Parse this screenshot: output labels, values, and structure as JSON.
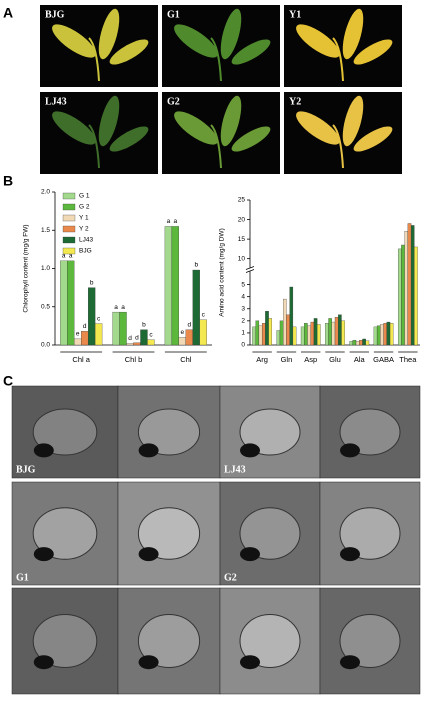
{
  "panel_labels": [
    "A",
    "B",
    "C"
  ],
  "photos_a": [
    "BJG",
    "G1",
    "Y1",
    "LJ43",
    "G2",
    "Y2"
  ],
  "photos_c": [
    "BJG",
    "LJ43",
    "G1",
    "G2"
  ],
  "chart_data": [
    {
      "type": "bar",
      "ylabel": "Chlorophyll content  (mg/g FW)",
      "categories": [
        "Chl a",
        "Chl b",
        "Chl"
      ],
      "ylim": [
        0,
        2.0
      ],
      "yticks": [
        {
          "value": 0,
          "label": "0.0"
        },
        0.5,
        {
          "value": 1,
          "label": "1.0"
        },
        1.5,
        {
          "value": 2,
          "label": "2.0"
        }
      ],
      "legend": "upper left",
      "series": [
        {
          "name": "G 1",
          "color": "#a3d98c",
          "values": [
            1.1,
            0.43,
            1.55
          ],
          "letters": [
            "a",
            "a",
            "a"
          ]
        },
        {
          "name": "G 2",
          "color": "#5cb83d",
          "values": [
            1.1,
            0.43,
            1.55
          ],
          "letters": [
            "a",
            "a",
            "a"
          ]
        },
        {
          "name": "Y 1",
          "color": "#f1d9b5",
          "values": [
            0.08,
            0.02,
            0.1
          ],
          "letters": [
            "e",
            "d",
            "e"
          ]
        },
        {
          "name": "Y 2",
          "color": "#e98a4c",
          "values": [
            0.18,
            0.03,
            0.2
          ],
          "letters": [
            "d",
            "d",
            "d"
          ]
        },
        {
          "name": "LJ43",
          "color": "#1e6a35",
          "values": [
            0.75,
            0.2,
            0.98
          ],
          "letters": [
            "b",
            "b",
            "b"
          ]
        },
        {
          "name": "BJG",
          "color": "#f3e84f",
          "values": [
            0.28,
            0.07,
            0.33
          ],
          "letters": [
            "c",
            "c",
            "c"
          ]
        }
      ]
    },
    {
      "type": "bar",
      "ylabel": "Amino acid content (mg/g DW)",
      "categories": [
        "Arg",
        "Gln",
        "Asp",
        "Glu",
        "Ala",
        "GABA",
        "Thea"
      ],
      "ylim": [
        0,
        25
      ],
      "axis_break": [
        6,
        8
      ],
      "yticks": [
        0,
        1,
        2,
        3,
        4,
        5,
        10,
        15,
        20,
        25
      ],
      "series": [
        {
          "name": "G 1",
          "color": "#a3d98c",
          "values": [
            1.5,
            1.2,
            1.5,
            1.8,
            0.3,
            1.5,
            12.5
          ]
        },
        {
          "name": "G 2",
          "color": "#5cb83d",
          "values": [
            2.0,
            2.0,
            1.8,
            2.2,
            0.4,
            1.6,
            13.5
          ]
        },
        {
          "name": "Y 1",
          "color": "#f1d9b5",
          "values": [
            1.6,
            3.8,
            1.6,
            1.9,
            0.3,
            1.7,
            17
          ]
        },
        {
          "name": "Y 2",
          "color": "#e98a4c",
          "values": [
            1.8,
            2.5,
            1.9,
            2.3,
            0.4,
            1.8,
            19
          ]
        },
        {
          "name": "LJ43",
          "color": "#1e6a35",
          "values": [
            2.8,
            4.8,
            2.2,
            2.5,
            0.5,
            1.9,
            18.5
          ]
        },
        {
          "name": "BJG",
          "color": "#f3e84f",
          "values": [
            2.2,
            1.5,
            1.7,
            2.0,
            0.35,
            1.8,
            13
          ]
        }
      ]
    }
  ]
}
